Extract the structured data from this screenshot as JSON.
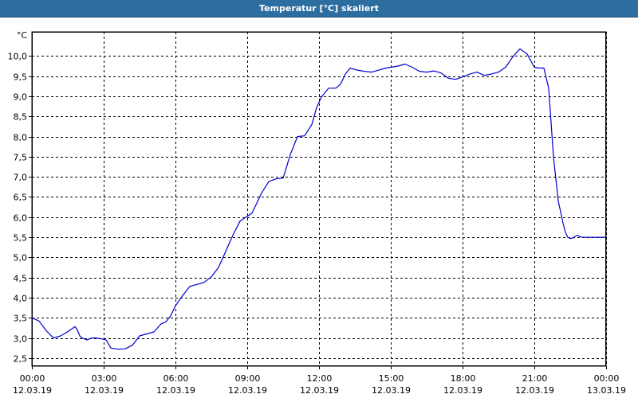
{
  "window": {
    "title": "Temperatur [°C] skaliert"
  },
  "chart_data": {
    "type": "line",
    "title": "Temperatur [°C] skaliert",
    "unit_label": "°C",
    "xlabel": "",
    "ylabel": "",
    "grid": true,
    "ylim": [
      2.3,
      10.6
    ],
    "xlim_hours": [
      0,
      24
    ],
    "y_ticks": [
      2.5,
      3.0,
      3.5,
      4.0,
      4.5,
      5.0,
      5.5,
      6.0,
      6.5,
      7.0,
      7.5,
      8.0,
      8.5,
      9.0,
      9.5,
      10.0
    ],
    "y_tick_labels": [
      "2,5",
      "3,0",
      "3,5",
      "4,0",
      "4,5",
      "5,0",
      "5,5",
      "6,0",
      "6,5",
      "7,0",
      "7,5",
      "8,0",
      "8,5",
      "9,0",
      "9,5",
      "10,0"
    ],
    "x_ticks": [
      {
        "time": "00:00",
        "date": "12.03.19"
      },
      {
        "time": "03:00",
        "date": "12.03.19"
      },
      {
        "time": "06:00",
        "date": "12.03.19"
      },
      {
        "time": "09:00",
        "date": "12.03.19"
      },
      {
        "time": "12:00",
        "date": "12.03.19"
      },
      {
        "time": "15:00",
        "date": "12.03.19"
      },
      {
        "time": "18:00",
        "date": "12.03.19"
      },
      {
        "time": "21:00",
        "date": "12.03.19"
      },
      {
        "time": "00:00",
        "date": "13.03.19"
      }
    ],
    "line_color": "#0000cc",
    "series": [
      {
        "x_hours": [
          0,
          0.3,
          0.6,
          0.9,
          1.2,
          1.4,
          1.6,
          1.8,
          1.9,
          2.0,
          2.1,
          2.3,
          2.5,
          2.7,
          2.9,
          3.1,
          3.3,
          3.6,
          3.9,
          4.2,
          4.5,
          4.8,
          5.1,
          5.4,
          5.6,
          5.8,
          6.0,
          6.3,
          6.6,
          6.9,
          7.2,
          7.5,
          7.8,
          8.1,
          8.4,
          8.7,
          9.0,
          9.2,
          9.4,
          9.6,
          9.9,
          10.2,
          10.5,
          10.8,
          11.1,
          11.4,
          11.7,
          11.9,
          12.1,
          12.4,
          12.7,
          12.9,
          13.1,
          13.3,
          13.6,
          13.9,
          14.2,
          14.5,
          14.8,
          15.0,
          15.3,
          15.6,
          15.9,
          16.2,
          16.5,
          16.8,
          17.1,
          17.4,
          17.7,
          18.0,
          18.3,
          18.6,
          18.9,
          19.2,
          19.5,
          19.8,
          20.1,
          20.4,
          20.7,
          21.0,
          21.2,
          21.4,
          21.6,
          21.8,
          22.0,
          22.2,
          22.3,
          22.4,
          22.5,
          22.6,
          22.7,
          22.8,
          22.9,
          23.0,
          23.2,
          23.4,
          23.6,
          23.8,
          24.0
        ],
        "y": [
          3.5,
          3.42,
          3.18,
          3.0,
          3.05,
          3.12,
          3.2,
          3.28,
          3.2,
          3.05,
          3.0,
          2.95,
          3.0,
          3.0,
          2.98,
          2.95,
          2.75,
          2.72,
          2.73,
          2.82,
          3.05,
          3.1,
          3.15,
          3.35,
          3.4,
          3.55,
          3.8,
          4.05,
          4.28,
          4.33,
          4.38,
          4.52,
          4.75,
          5.15,
          5.55,
          5.9,
          6.02,
          6.1,
          6.35,
          6.6,
          6.88,
          6.95,
          6.97,
          7.55,
          8.0,
          8.02,
          8.3,
          8.72,
          8.98,
          9.2,
          9.2,
          9.3,
          9.55,
          9.7,
          9.65,
          9.62,
          9.6,
          9.65,
          9.7,
          9.72,
          9.75,
          9.8,
          9.72,
          9.62,
          9.6,
          9.63,
          9.58,
          9.45,
          9.42,
          9.48,
          9.55,
          9.6,
          9.52,
          9.55,
          9.6,
          9.72,
          9.98,
          10.18,
          10.05,
          9.72,
          9.7,
          9.7,
          9.2,
          7.5,
          6.4,
          5.85,
          5.62,
          5.5,
          5.47,
          5.48,
          5.52,
          5.55,
          5.52,
          5.5,
          5.5,
          5.5,
          5.5,
          5.5,
          5.5
        ]
      }
    ]
  }
}
